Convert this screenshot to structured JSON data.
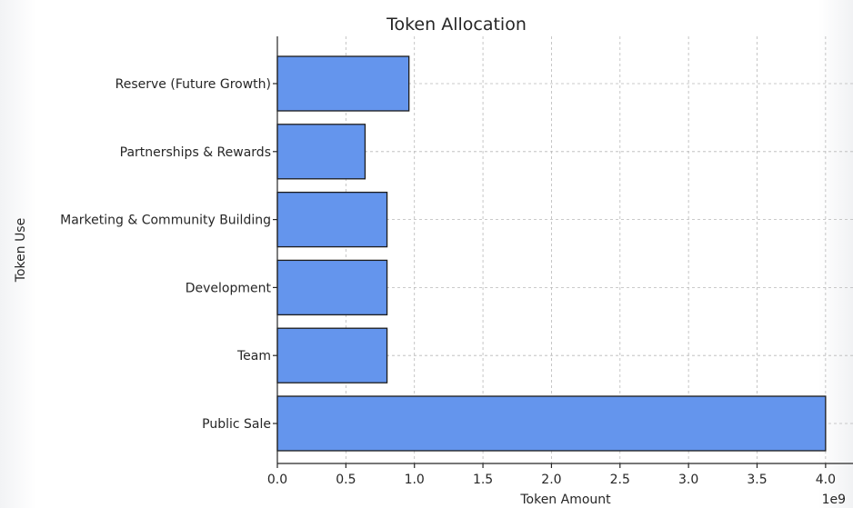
{
  "chart_data": {
    "type": "bar",
    "orientation": "horizontal",
    "title": "Token Allocation",
    "xlabel": "Token Amount",
    "ylabel": "Token Use",
    "x_scale_label": "1e9",
    "categories": [
      "Public Sale",
      "Team",
      "Development",
      "Marketing & Community Building",
      "Partnerships & Rewards",
      "Reserve (Future Growth)"
    ],
    "values": [
      4.0,
      0.8,
      0.8,
      0.8,
      0.64,
      0.96
    ],
    "value_unit_multiplier": 1000000000,
    "xlim": [
      0,
      4.2
    ],
    "xticks": [
      0.0,
      0.5,
      1.0,
      1.5,
      2.0,
      2.5,
      3.0,
      3.5,
      4.0
    ],
    "xtick_labels": [
      "0.0",
      "0.5",
      "1.0",
      "1.5",
      "2.0",
      "2.5",
      "3.0",
      "3.5",
      "4.0"
    ],
    "bar_color": "#6495ED",
    "grid": true
  }
}
